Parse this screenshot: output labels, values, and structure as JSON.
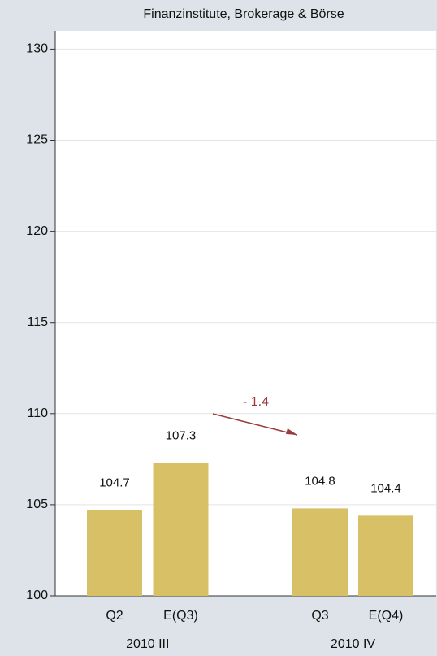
{
  "chart_data": {
    "type": "bar",
    "title": "Finanzinstitute, Brokerage & Börse",
    "categories": [
      "Q2",
      "E(Q3)",
      "Q3",
      "E(Q4)"
    ],
    "groups": [
      "2010 III",
      "2010 IV"
    ],
    "values": [
      104.7,
      107.3,
      104.8,
      104.4
    ],
    "color": "#d8c066",
    "ylim": [
      100,
      131
    ],
    "yticks": [
      100,
      105,
      110,
      115,
      120,
      125,
      130
    ],
    "grid": true,
    "annotation": {
      "text": "- 1.4",
      "color": "#9b3b3b"
    }
  }
}
